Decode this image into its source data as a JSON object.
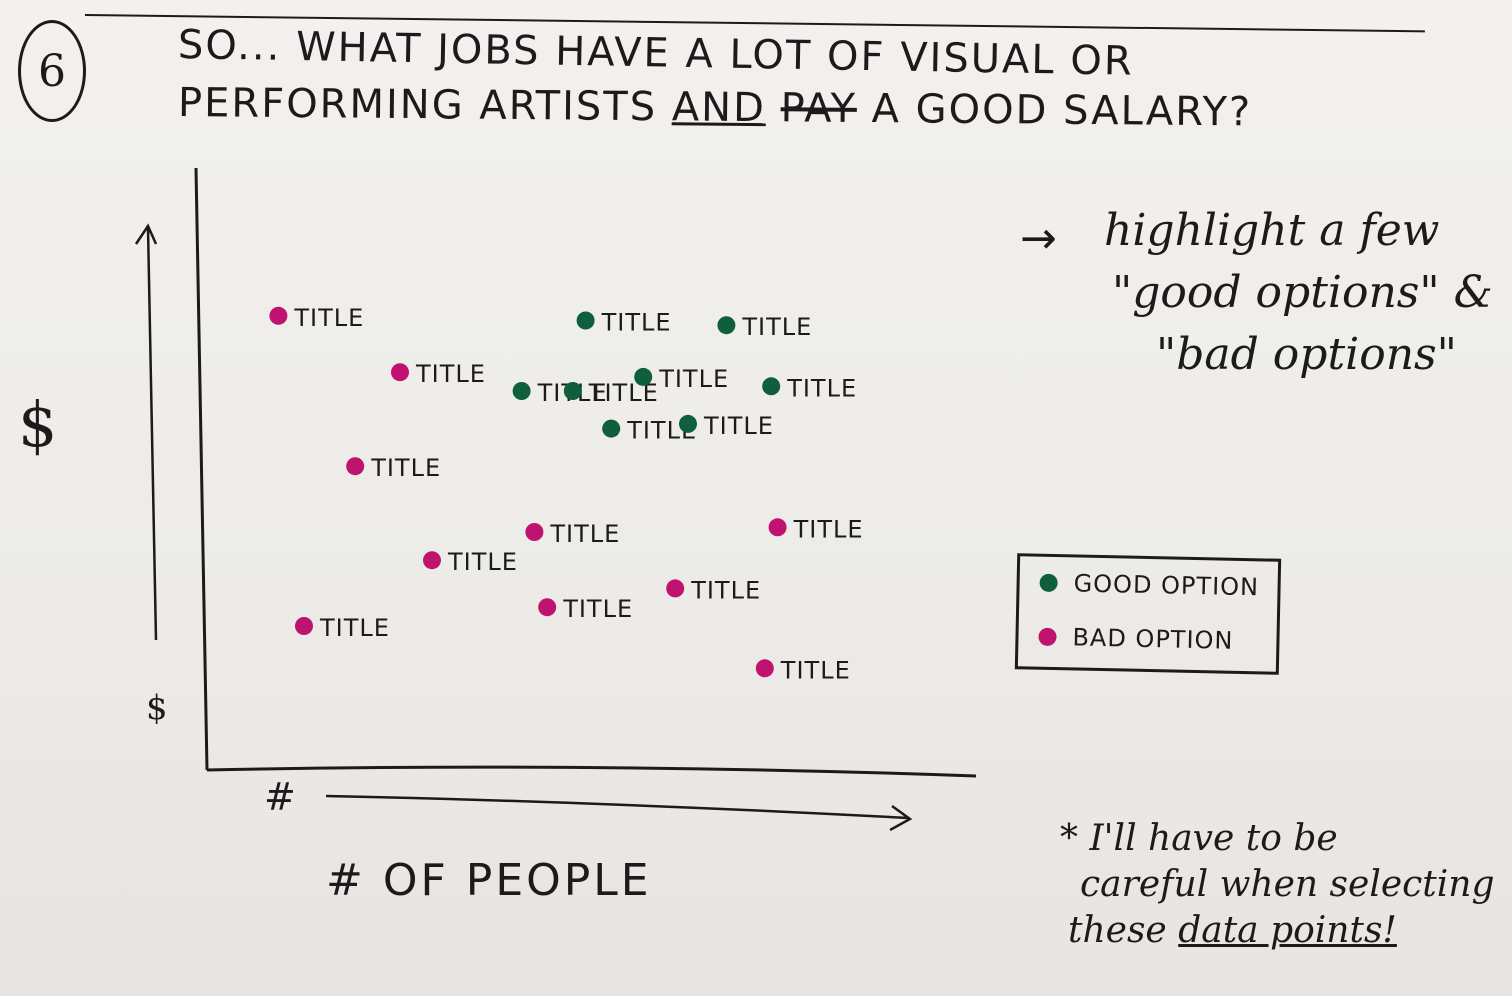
{
  "step": {
    "number": "6"
  },
  "title": {
    "line1": "SO... WHAT JOBS HAVE A LOT OF VISUAL OR",
    "line2_a": "PERFORMING ARTISTS ",
    "line2_and": "AND",
    "line2_struck": "PAY",
    "line2_b": " A GOOD SALARY?"
  },
  "note": {
    "arrow": "→",
    "line1": "highlight a few",
    "line2": "\"good options\" &",
    "line3": "\"bad options\""
  },
  "legend": {
    "good_label": "GOOD OPTION",
    "bad_label": "BAD OPTION"
  },
  "footnote": {
    "line1": "* I'll have to be",
    "line2": "careful when selecting",
    "line3a": "these ",
    "line3b": "data points!"
  },
  "colors": {
    "good": "#0f5e3c",
    "bad": "#c0136f",
    "ink": "#1d1a1c"
  },
  "chart_data": {
    "type": "scatter",
    "title": "",
    "xlabel": "# OF PEOPLE",
    "ylabel": "$",
    "x_low_label": "#",
    "y_low_label": "$",
    "xlim": [
      0,
      100
    ],
    "ylim": [
      0,
      100
    ],
    "grid": false,
    "legend_position": "right",
    "points": [
      {
        "x": 6,
        "y": 86,
        "label": "TITLE",
        "category": "bad"
      },
      {
        "x": 25,
        "y": 74,
        "label": "TITLE",
        "category": "bad"
      },
      {
        "x": 18,
        "y": 54,
        "label": "TITLE",
        "category": "bad"
      },
      {
        "x": 30,
        "y": 34,
        "label": "TITLE",
        "category": "bad"
      },
      {
        "x": 46,
        "y": 40,
        "label": "TITLE",
        "category": "bad"
      },
      {
        "x": 10,
        "y": 20,
        "label": "TITLE",
        "category": "bad"
      },
      {
        "x": 48,
        "y": 24,
        "label": "TITLE",
        "category": "bad"
      },
      {
        "x": 68,
        "y": 28,
        "label": "TITLE",
        "category": "bad"
      },
      {
        "x": 84,
        "y": 41,
        "label": "TITLE",
        "category": "bad"
      },
      {
        "x": 82,
        "y": 11,
        "label": "TITLE",
        "category": "bad"
      },
      {
        "x": 54,
        "y": 85,
        "label": "TITLE",
        "category": "good"
      },
      {
        "x": 76,
        "y": 84,
        "label": "TITLE",
        "category": "good"
      },
      {
        "x": 44,
        "y": 70,
        "label": "TITLE",
        "category": "good"
      },
      {
        "x": 52,
        "y": 70,
        "label": "TITLE",
        "category": "good"
      },
      {
        "x": 63,
        "y": 73,
        "label": "TITLE",
        "category": "good"
      },
      {
        "x": 83,
        "y": 71,
        "label": "TITLE",
        "category": "good"
      },
      {
        "x": 58,
        "y": 62,
        "label": "TITLE",
        "category": "good"
      },
      {
        "x": 70,
        "y": 63,
        "label": "TITLE",
        "category": "good"
      }
    ],
    "series": [
      {
        "name": "GOOD OPTION",
        "category": "good"
      },
      {
        "name": "BAD OPTION",
        "category": "bad"
      }
    ]
  }
}
